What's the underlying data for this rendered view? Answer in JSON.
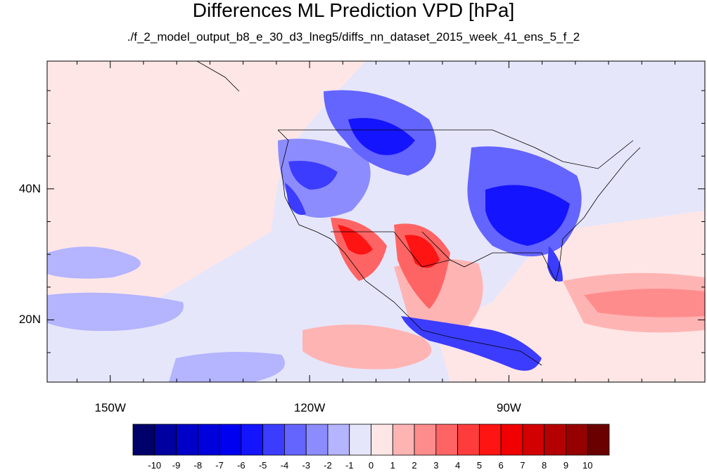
{
  "title": "Differences ML Prediction VPD [hPa]",
  "subtitle": "./f_2_model_output_b8_e_30_d3_lneg5/diffs_nn_dataset_2015_week_41_ens_5_f_2",
  "axes": {
    "lat_labels": [
      {
        "text": "40N",
        "lat": 40
      },
      {
        "text": "20N",
        "lat": 20
      }
    ],
    "lon_labels": [
      {
        "text": "150W",
        "lon": -150
      },
      {
        "text": "120W",
        "lon": -120
      },
      {
        "text": "90W",
        "lon": -90
      }
    ],
    "lon_range": [
      -159.5,
      -60.5
    ],
    "lat_range": [
      10.5,
      59.5
    ]
  },
  "colorbar": {
    "labels": [
      "-10",
      "-9",
      "-8",
      "-7",
      "-6",
      "-5",
      "-4",
      "-3",
      "-2",
      "-1",
      "0",
      "1",
      "2",
      "3",
      "4",
      "5",
      "6",
      "7",
      "8",
      "9",
      "10"
    ],
    "colors": [
      "#00006a",
      "#0000a0",
      "#0000c8",
      "#0000dc",
      "#0000f0",
      "#1414ff",
      "#3c3cff",
      "#6464ff",
      "#8c8cff",
      "#b4b4ff",
      "#e6e6fa",
      "#ffe6e6",
      "#ffb4b4",
      "#ff8c8c",
      "#ff6464",
      "#ff3c3c",
      "#ff1414",
      "#f00000",
      "#d20000",
      "#b40000",
      "#960000",
      "#6a0000"
    ]
  },
  "colors": {
    "background_field": "#e6e6fa",
    "positive_field": "#ffe6e6",
    "coast": "#000000"
  }
}
